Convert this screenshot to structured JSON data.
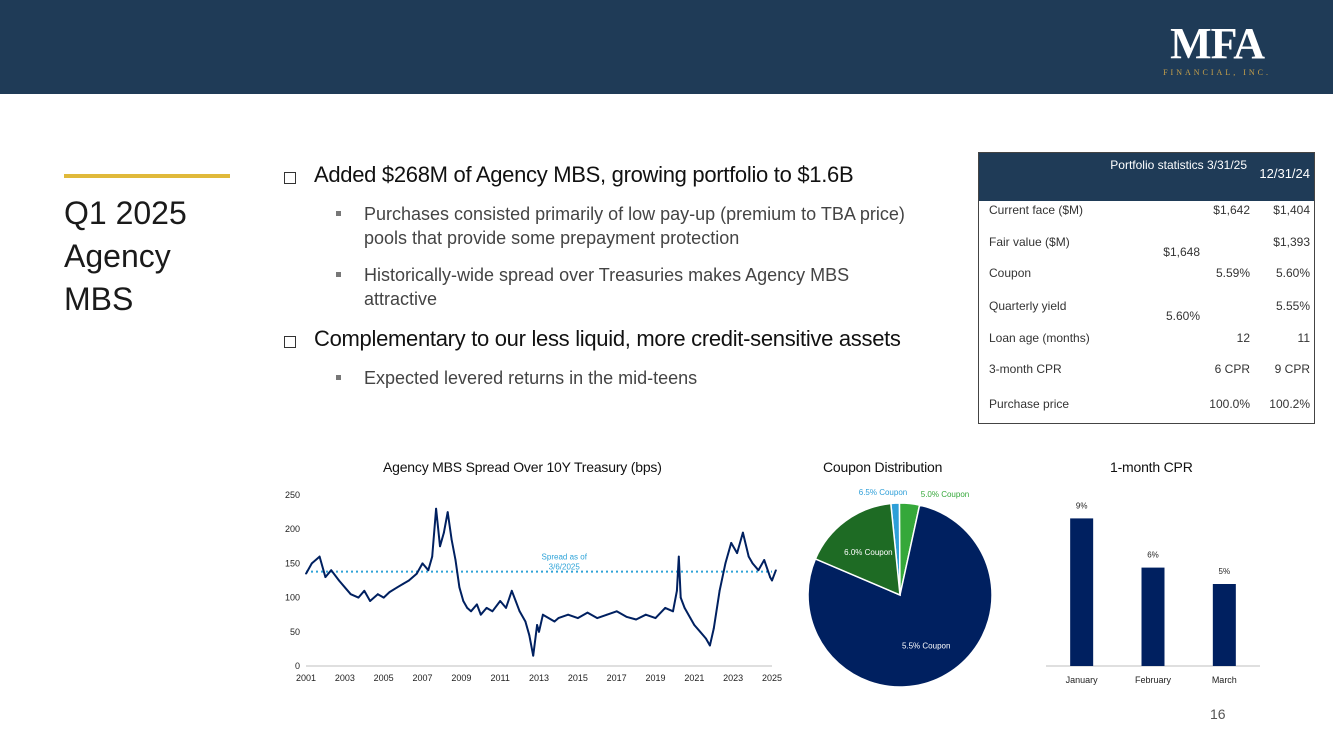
{
  "header": {
    "logo_text": "MFA",
    "logo_subtext": "FINANCIAL, INC.",
    "brand_color": "#1f3b57",
    "accent_color": "#e0b93a"
  },
  "side_title": "Q1 2025 Agency MBS",
  "bullets": [
    {
      "text": "Added $268M of Agency MBS, growing portfolio to $1.6B",
      "subs": [
        "Purchases consisted primarily of low pay-up (premium to TBA price) pools that provide some prepayment protection",
        "Historically-wide spread over Treasuries makes Agency MBS attractive"
      ]
    },
    {
      "text": "Complementary to our less liquid, more credit-sensitive assets",
      "subs": [
        "Expected levered returns in the mid-teens"
      ]
    }
  ],
  "stats": {
    "header_col1": "Portfolio statistics 3/31/25",
    "header_col2": "12/31/24",
    "rows": [
      {
        "label": "Current face ($M)",
        "v1": "$1,642",
        "v2": "$1,404"
      },
      {
        "label": "Fair value ($M)",
        "v1": "$1,648",
        "v2": "$1,393"
      },
      {
        "label": "Coupon",
        "v1": "5.59%",
        "v2": "5.60%"
      },
      {
        "label": "Quarterly yield",
        "v1": "5.60%",
        "v2": "5.55%"
      },
      {
        "label": "Loan age (months)",
        "v1": "12",
        "v2": "11"
      },
      {
        "label": "3-month CPR",
        "v1": "6 CPR",
        "v2": "9 CPR"
      },
      {
        "label": "Purchase price",
        "v1": "100.0%",
        "v2": "100.2%"
      }
    ]
  },
  "chart_data": [
    {
      "type": "line",
      "title": "Agency MBS Spread Over 10Y Treasury (bps)",
      "x_ticks": [
        "2001",
        "2003",
        "2005",
        "2007",
        "2009",
        "2011",
        "2013",
        "2015",
        "2017",
        "2019",
        "2021",
        "2023",
        "2025"
      ],
      "y_ticks": [
        0,
        50,
        100,
        150,
        200,
        250
      ],
      "xlim": [
        2001,
        2025
      ],
      "ylim": [
        0,
        250
      ],
      "series": [
        {
          "name": "Spread",
          "x": [
            2001.0,
            2001.3,
            2001.7,
            2002.0,
            2002.3,
            2002.7,
            2003.0,
            2003.3,
            2003.7,
            2004.0,
            2004.3,
            2004.7,
            2005.0,
            2005.3,
            2005.7,
            2006.0,
            2006.3,
            2006.7,
            2007.0,
            2007.3,
            2007.5,
            2007.7,
            2007.9,
            2008.1,
            2008.3,
            2008.5,
            2008.7,
            2008.9,
            2009.1,
            2009.3,
            2009.5,
            2009.8,
            2010.0,
            2010.3,
            2010.6,
            2011.0,
            2011.3,
            2011.6,
            2011.8,
            2012.0,
            2012.3,
            2012.5,
            2012.7,
            2012.9,
            2013.0,
            2013.2,
            2013.5,
            2013.8,
            2014.0,
            2014.5,
            2015.0,
            2015.5,
            2016.0,
            2016.5,
            2017.0,
            2017.5,
            2018.0,
            2018.5,
            2019.0,
            2019.5,
            2019.9,
            2020.1,
            2020.2,
            2020.3,
            2020.5,
            2020.8,
            2021.0,
            2021.3,
            2021.6,
            2021.8,
            2022.0,
            2022.3,
            2022.6,
            2022.9,
            2023.2,
            2023.5,
            2023.8,
            2024.0,
            2024.3,
            2024.6,
            2024.9,
            2025.0,
            2025.2
          ],
          "values": [
            135,
            150,
            160,
            130,
            140,
            125,
            115,
            105,
            100,
            110,
            95,
            105,
            100,
            108,
            115,
            120,
            125,
            135,
            150,
            140,
            160,
            230,
            175,
            195,
            225,
            185,
            155,
            115,
            95,
            85,
            80,
            90,
            75,
            85,
            80,
            95,
            85,
            110,
            95,
            80,
            65,
            45,
            15,
            60,
            50,
            75,
            70,
            65,
            70,
            75,
            70,
            78,
            70,
            75,
            80,
            72,
            68,
            75,
            70,
            85,
            80,
            110,
            160,
            100,
            85,
            70,
            60,
            50,
            40,
            30,
            55,
            110,
            150,
            180,
            165,
            195,
            160,
            150,
            140,
            155,
            130,
            125,
            140
          ]
        }
      ],
      "annotation": "Spread as of 3/6/2025",
      "reference_value": 138
    },
    {
      "type": "pie",
      "title": "Coupon Distribution",
      "labels": [
        "5.5% Coupon",
        "6.0% Coupon",
        "6.5% Coupon",
        "5.0% Coupon"
      ],
      "values": [
        78,
        17,
        1.5,
        3.5
      ],
      "colors": [
        "#002060",
        "#1e6b24",
        "#2e9fd8",
        "#35a83a"
      ]
    },
    {
      "type": "bar",
      "title": "1-month CPR",
      "categories": [
        "January",
        "February",
        "March"
      ],
      "values": [
        9,
        6,
        5
      ],
      "labels": [
        "9%",
        "6%",
        "5%"
      ],
      "ylim": [
        0,
        10
      ],
      "color": "#002060"
    }
  ],
  "page_number": "16"
}
